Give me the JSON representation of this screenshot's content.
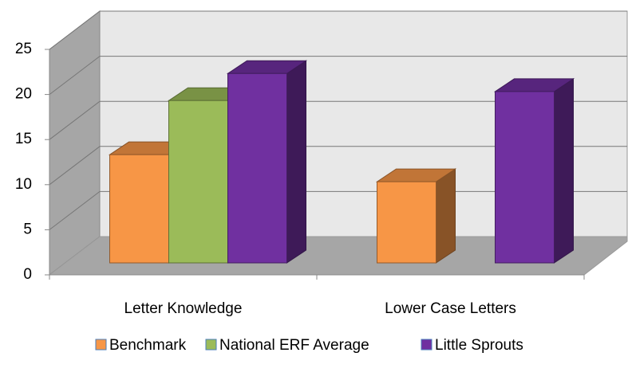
{
  "chart_data": {
    "type": "bar3d",
    "categories": [
      "Letter Knowledge",
      "Lower Case Letters"
    ],
    "series": [
      {
        "name": "Benchmark",
        "color": "#f79646",
        "values": [
          12,
          9
        ]
      },
      {
        "name": "National ERF Average",
        "color": "#9bbb59",
        "values": [
          18,
          null
        ]
      },
      {
        "name": "Little Sprouts",
        "color": "#7030a0",
        "values": [
          21,
          19
        ]
      }
    ],
    "ylim": [
      0,
      25
    ],
    "yticks": [
      0,
      5,
      10,
      15,
      20,
      25
    ],
    "grid": true,
    "legend": "bottom"
  }
}
